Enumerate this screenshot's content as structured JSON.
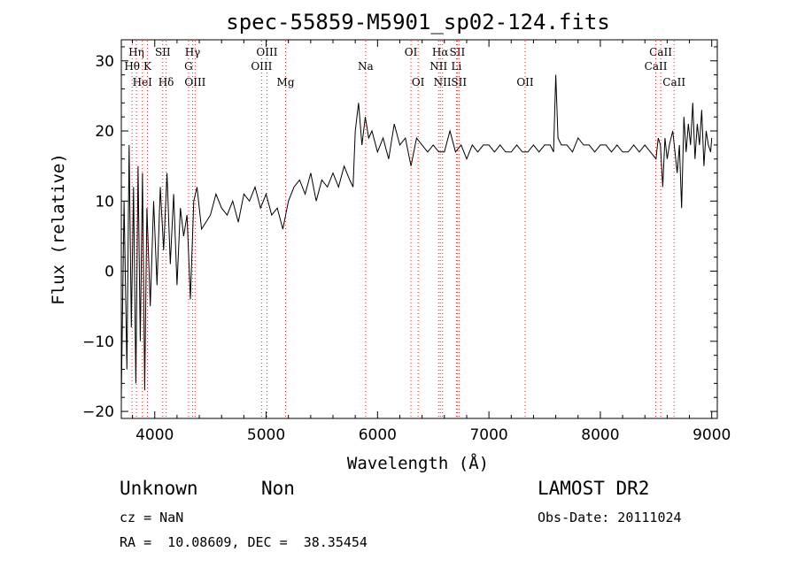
{
  "chart_data": {
    "type": "line",
    "title": "spec-55859-M5901_sp02-124.fits",
    "xlabel": "Wavelength (Å)",
    "ylabel": "Flux (relative)",
    "xlim": [
      3700,
      9050
    ],
    "ylim": [
      -21,
      33
    ],
    "xticks": [
      4000,
      5000,
      6000,
      7000,
      8000,
      9000
    ],
    "yticks": [
      -20,
      -10,
      0,
      10,
      20,
      30
    ],
    "xtick_labels": [
      "4000",
      "5000",
      "6000",
      "7000",
      "8000",
      "9000"
    ],
    "ytick_labels": [
      "−20",
      "−10",
      "0",
      "10",
      "20",
      "30"
    ],
    "grid": false,
    "line_color": "#000000",
    "marker_color": "#d62728",
    "series": [
      {
        "x": [
          3700,
          3725,
          3750,
          3770,
          3790,
          3810,
          3830,
          3850,
          3870,
          3890,
          3910,
          3930,
          3960,
          3990,
          4020,
          4050,
          4080,
          4110,
          4140,
          4170,
          4200,
          4230,
          4260,
          4290,
          4320,
          4350,
          4380,
          4420,
          4460,
          4500,
          4550,
          4600,
          4650,
          4700,
          4750,
          4800,
          4850,
          4900,
          4950,
          5000,
          5050,
          5100,
          5150,
          5200,
          5250,
          5300,
          5350,
          5400,
          5450,
          5500,
          5550,
          5600,
          5650,
          5700,
          5750,
          5780,
          5800,
          5830,
          5860,
          5890,
          5920,
          5950,
          6000,
          6050,
          6100,
          6150,
          6200,
          6250,
          6300,
          6350,
          6400,
          6450,
          6500,
          6550,
          6600,
          6650,
          6700,
          6750,
          6800,
          6850,
          6900,
          6950,
          7000,
          7050,
          7100,
          7150,
          7200,
          7250,
          7300,
          7350,
          7400,
          7450,
          7500,
          7550,
          7580,
          7600,
          7620,
          7650,
          7700,
          7750,
          7800,
          7850,
          7900,
          7950,
          8000,
          8050,
          8100,
          8150,
          8200,
          8250,
          8300,
          8350,
          8400,
          8450,
          8500,
          8520,
          8540,
          8560,
          8580,
          8600,
          8620,
          8650,
          8670,
          8690,
          8710,
          8730,
          8750,
          8770,
          8790,
          8810,
          8830,
          8850,
          8870,
          8890,
          8910,
          8930,
          8950,
          8970,
          8990,
          9000
        ],
        "y": [
          -18,
          10,
          -14,
          18,
          -8,
          12,
          -16,
          15,
          -10,
          14,
          -17,
          9,
          -5,
          10,
          -2,
          12,
          3,
          14,
          1,
          11,
          -2,
          9,
          5,
          8,
          -4,
          10,
          12,
          6,
          7,
          8,
          11,
          9,
          8,
          10,
          7,
          11,
          10,
          12,
          9,
          11,
          8,
          9,
          6,
          10,
          12,
          13,
          11,
          14,
          10,
          13,
          12,
          14,
          12,
          15,
          13,
          12,
          20,
          24,
          18,
          22,
          19,
          20,
          17,
          19,
          16,
          21,
          18,
          19,
          15,
          19,
          18,
          17,
          18,
          17,
          17,
          20,
          17,
          18,
          16,
          18,
          17,
          18,
          18,
          17,
          18,
          17,
          17,
          18,
          17,
          17,
          18,
          17,
          18,
          18,
          17,
          28,
          19,
          18,
          18,
          17,
          19,
          18,
          18,
          17,
          18,
          18,
          17,
          18,
          17,
          17,
          18,
          17,
          18,
          17,
          16,
          19,
          18,
          12,
          19,
          16,
          18,
          20,
          17,
          14,
          18,
          9,
          22,
          17,
          21,
          18,
          24,
          16,
          21,
          18,
          23,
          15,
          20,
          18,
          17,
          19
        ]
      }
    ],
    "line_markers": [
      {
        "label": "Hη",
        "x": 3835,
        "row": 1
      },
      {
        "label": "Hθ",
        "x": 3797,
        "row": 2
      },
      {
        "label": "K",
        "x": 3934,
        "row": 2
      },
      {
        "label": "HeI",
        "x": 3889,
        "row": 3
      },
      {
        "label": "SII",
        "x": 4072,
        "row": 1
      },
      {
        "label": "Hδ",
        "x": 4102,
        "row": 3
      },
      {
        "label": "Hγ",
        "x": 4340,
        "row": 1
      },
      {
        "label": "G",
        "x": 4304,
        "row": 2
      },
      {
        "label": "OIII",
        "x": 4363,
        "row": 3
      },
      {
        "label": "OIII",
        "x": 5007,
        "row": 1
      },
      {
        "label": "OIII",
        "x": 4959,
        "row": 2
      },
      {
        "label": "Mg",
        "x": 5175,
        "row": 3
      },
      {
        "label": "Na",
        "x": 5893,
        "row": 2
      },
      {
        "label": "OI",
        "x": 6300,
        "row": 1
      },
      {
        "label": "OI",
        "x": 6364,
        "row": 3
      },
      {
        "label": "Hα",
        "x": 6563,
        "row": 1
      },
      {
        "label": "NII",
        "x": 6548,
        "row": 2
      },
      {
        "label": "NII",
        "x": 6583,
        "row": 3
      },
      {
        "label": "SII",
        "x": 6716,
        "row": 1
      },
      {
        "label": "Li",
        "x": 6708,
        "row": 2
      },
      {
        "label": "SII",
        "x": 6731,
        "row": 3
      },
      {
        "label": "OII",
        "x": 7325,
        "row": 3
      },
      {
        "label": "CaII",
        "x": 8542,
        "row": 1
      },
      {
        "label": "CaII",
        "x": 8498,
        "row": 2
      },
      {
        "label": "CaII",
        "x": 8662,
        "row": 3
      }
    ]
  },
  "info": {
    "class": "Unknown",
    "subclass": "Non",
    "survey": "LAMOST DR2",
    "cz": "cz = NaN",
    "obsdate": "Obs-Date: 20111024",
    "radec": "RA =  10.08609, DEC =  38.35454"
  }
}
